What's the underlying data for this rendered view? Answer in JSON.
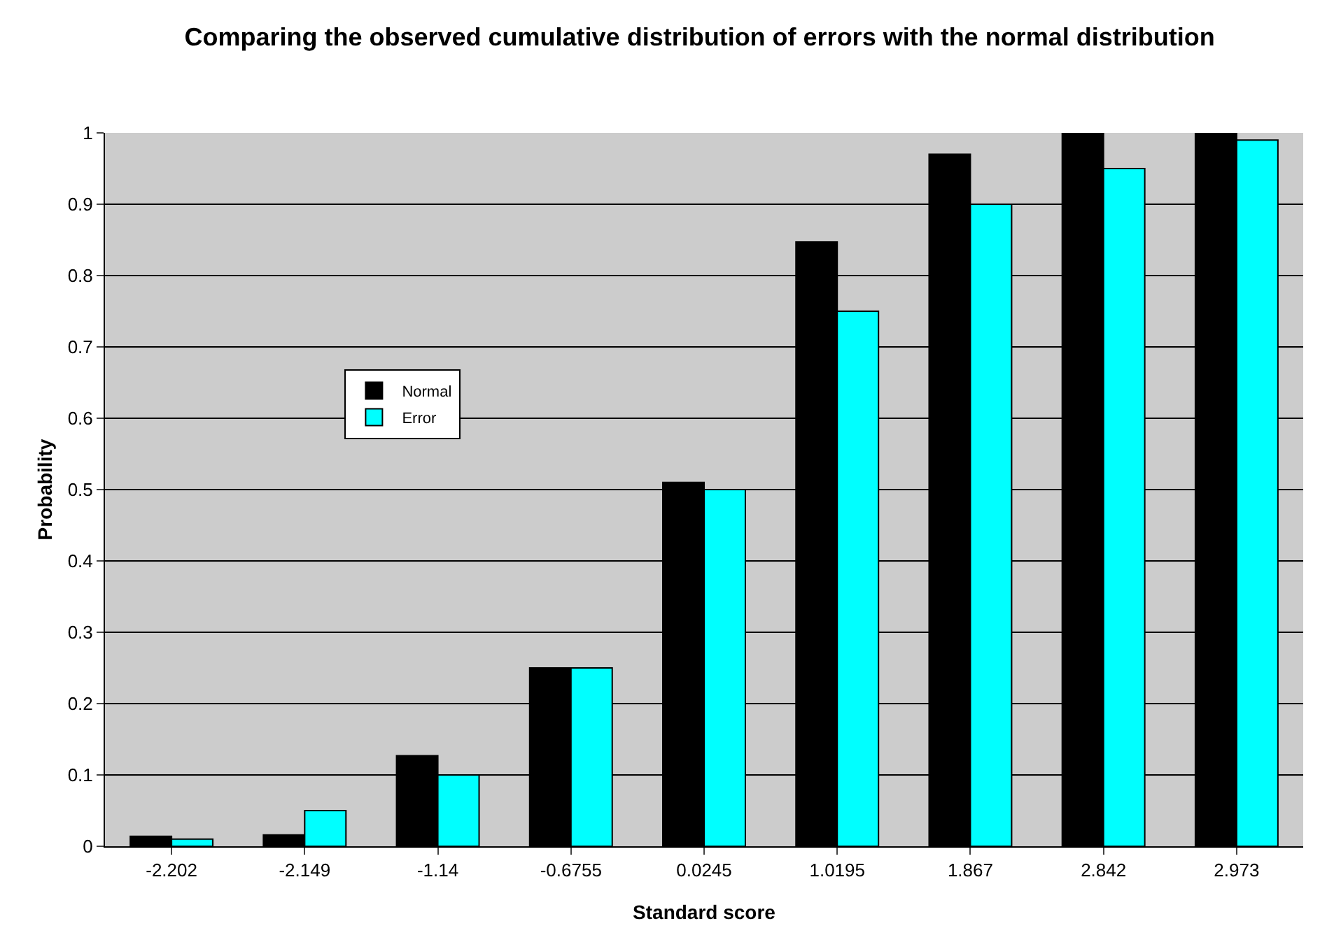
{
  "chart_data": {
    "type": "bar",
    "title": "Comparing the observed cumulative distribution of errors with the normal distribution",
    "xlabel": "Standard score",
    "ylabel": "Probability",
    "categories": [
      "-2.202",
      "-2.149",
      "-1.14",
      "-0.6755",
      "0.0245",
      "1.0195",
      "1.867",
      "2.842",
      "2.973"
    ],
    "series": [
      {
        "name": "Normal",
        "color": "#000000",
        "values": [
          0.014,
          0.016,
          0.127,
          0.25,
          0.51,
          0.847,
          0.97,
          1.0,
          1.0
        ]
      },
      {
        "name": "Error",
        "color": "#00ffff",
        "values": [
          0.01,
          0.05,
          0.1,
          0.25,
          0.5,
          0.75,
          0.9,
          0.95,
          0.99
        ]
      }
    ],
    "ylim": [
      0,
      1
    ],
    "yticks": [
      0,
      0.1,
      0.2,
      0.3,
      0.4,
      0.5,
      0.6,
      0.7,
      0.8,
      0.9,
      1
    ],
    "grid": "y",
    "legend": "left"
  }
}
